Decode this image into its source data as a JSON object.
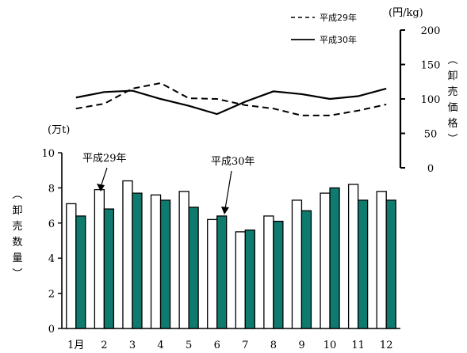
{
  "chart_data": {
    "type": "bar+line",
    "months": [
      "1月",
      "2",
      "3",
      "4",
      "5",
      "6",
      "7",
      "8",
      "9",
      "10",
      "11",
      "12"
    ],
    "bar_axis": {
      "unit": "(万t)",
      "label": "卸売数量",
      "ylim": [
        0,
        10
      ],
      "ticks": [
        "0",
        "2",
        "4",
        "6",
        "8",
        "10"
      ]
    },
    "price_axis": {
      "unit": "(円/kg)",
      "label": "卸売価格",
      "ylim": [
        0,
        200
      ],
      "ticks": [
        "0",
        "50",
        "100",
        "150",
        "200"
      ]
    },
    "quantity_series": [
      {
        "name": "平成29年",
        "color": "#ffffff",
        "values": [
          7.1,
          7.9,
          8.4,
          7.6,
          7.8,
          6.2,
          5.5,
          6.4,
          7.3,
          7.7,
          8.2,
          7.8
        ]
      },
      {
        "name": "平成30年",
        "color": "#0f7a6e",
        "values": [
          6.4,
          6.8,
          7.7,
          7.3,
          6.9,
          6.4,
          5.6,
          6.1,
          6.7,
          8.0,
          7.3,
          7.3
        ]
      }
    ],
    "price_series": [
      {
        "name": "平成29年",
        "style": "dashed",
        "values": [
          86,
          93,
          115,
          123,
          101,
          100,
          91,
          86,
          76,
          76,
          83,
          92
        ]
      },
      {
        "name": "平成30年",
        "style": "solid",
        "values": [
          102,
          110,
          112,
          100,
          90,
          78,
          96,
          111,
          107,
          100,
          104,
          115
        ]
      }
    ],
    "legend": [
      {
        "label": "平成29年",
        "style": "dashed"
      },
      {
        "label": "平成30年",
        "style": "solid"
      }
    ],
    "annotations": [
      {
        "text": "平成29年",
        "target_series": 0,
        "month_index": 1
      },
      {
        "text": "平成30年",
        "target_series": 1,
        "month_index": 5
      }
    ]
  }
}
